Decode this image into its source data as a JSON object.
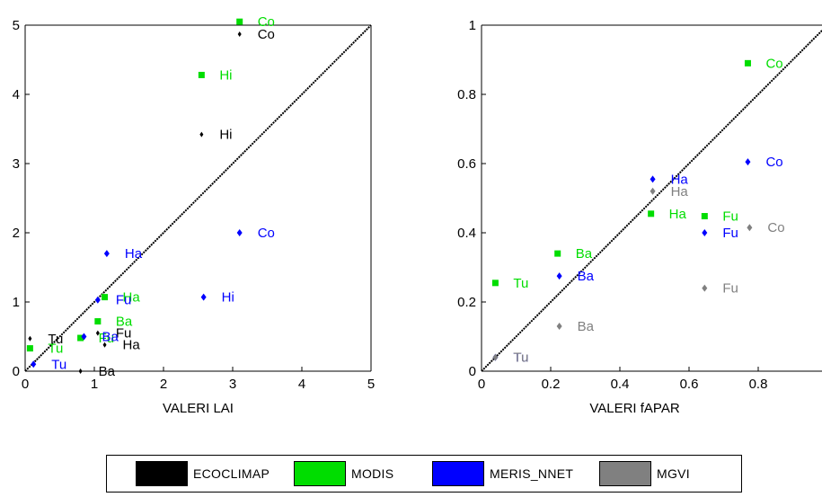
{
  "colors": {
    "ECOCLIMAP": "#000000",
    "MODIS": "#00dd00",
    "MERIS_NNET": "#0000ff",
    "MGVI": "#808080"
  },
  "legend": [
    {
      "label": "ECOCLIMAP",
      "color": "#000000"
    },
    {
      "label": "MODIS",
      "color": "#00dd00"
    },
    {
      "label": "MERIS_NNET",
      "color": "#0000ff"
    },
    {
      "label": "MGVI",
      "color": "#808080"
    }
  ],
  "chart_data": [
    {
      "type": "scatter",
      "xlabel": "VALERI LAI",
      "ylabel": "",
      "xlim": [
        0,
        5
      ],
      "ylim": [
        0,
        5
      ],
      "x_ticks": [
        "0",
        "1",
        "2",
        "3",
        "4",
        "5"
      ],
      "y_ticks": [
        "0",
        "1",
        "2",
        "3",
        "4",
        "5"
      ],
      "diagonal": true,
      "series": [
        {
          "name": "ECOCLIMAP",
          "points": [
            {
              "label": "Co",
              "x": 3.1,
              "y": 4.87
            },
            {
              "label": "Hi",
              "x": 2.55,
              "y": 3.42
            },
            {
              "label": "Fu",
              "x": 1.05,
              "y": 0.55
            },
            {
              "label": "Ha",
              "x": 1.15,
              "y": 0.38
            },
            {
              "label": "Tu",
              "x": 0.07,
              "y": 0.47
            },
            {
              "label": "Ba",
              "x": 0.8,
              "y": 0.0
            }
          ]
        },
        {
          "name": "MODIS",
          "points": [
            {
              "label": "Co",
              "x": 3.1,
              "y": 5.05
            },
            {
              "label": "Hi",
              "x": 2.55,
              "y": 4.28
            },
            {
              "label": "Ha",
              "x": 1.15,
              "y": 1.07
            },
            {
              "label": "Ba",
              "x": 1.05,
              "y": 0.72
            },
            {
              "label": "Fu",
              "x": 0.8,
              "y": 0.48
            },
            {
              "label": "Tu",
              "x": 0.07,
              "y": 0.33
            }
          ]
        },
        {
          "name": "MERIS_NNET",
          "points": [
            {
              "label": "Co",
              "x": 3.1,
              "y": 2.0
            },
            {
              "label": "Ha",
              "x": 1.18,
              "y": 1.7
            },
            {
              "label": "Hi",
              "x": 2.58,
              "y": 1.07
            },
            {
              "label": "Fu",
              "x": 1.05,
              "y": 1.03
            },
            {
              "label": "Ba",
              "x": 0.85,
              "y": 0.5
            },
            {
              "label": "Tu",
              "x": 0.12,
              "y": 0.1
            }
          ]
        }
      ]
    },
    {
      "type": "scatter",
      "xlabel": "VALERI fAPAR",
      "ylabel": "",
      "xlim": [
        0,
        1
      ],
      "ylim": [
        0,
        1
      ],
      "x_ticks": [
        "0",
        "0.2",
        "0.4",
        "0.6",
        "0.8"
      ],
      "y_ticks": [
        "0",
        "0.2",
        "0.4",
        "0.6",
        "0.8",
        "1"
      ],
      "diagonal": true,
      "series": [
        {
          "name": "MODIS",
          "points": [
            {
              "label": "Co",
              "x": 0.77,
              "y": 0.89
            },
            {
              "label": "Ha",
              "x": 0.49,
              "y": 0.455
            },
            {
              "label": "Fu",
              "x": 0.645,
              "y": 0.448
            },
            {
              "label": "Ba",
              "x": 0.22,
              "y": 0.34
            },
            {
              "label": "Tu",
              "x": 0.04,
              "y": 0.255
            }
          ]
        },
        {
          "name": "MERIS_NNET",
          "points": [
            {
              "label": "Co",
              "x": 0.77,
              "y": 0.605
            },
            {
              "label": "Ha",
              "x": 0.495,
              "y": 0.555
            },
            {
              "label": "Fu",
              "x": 0.645,
              "y": 0.4
            },
            {
              "label": "Ba",
              "x": 0.225,
              "y": 0.275
            },
            {
              "label": "Tu",
              "x": 0.04,
              "y": 0.04
            }
          ]
        },
        {
          "name": "MGVI",
          "points": [
            {
              "label": "Ha",
              "x": 0.495,
              "y": 0.52
            },
            {
              "label": "Co",
              "x": 0.775,
              "y": 0.415
            },
            {
              "label": "Fu",
              "x": 0.645,
              "y": 0.24
            },
            {
              "label": "Ba",
              "x": 0.225,
              "y": 0.13
            },
            {
              "label": "Tu",
              "x": 0.04,
              "y": 0.04
            }
          ]
        }
      ]
    }
  ]
}
